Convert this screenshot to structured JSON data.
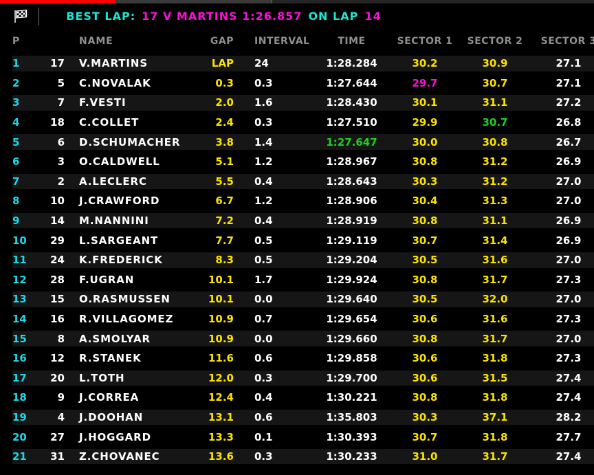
{
  "palette": {
    "red": "#ff0000",
    "seg_gray": "#3a3a3a",
    "seg_dark": "#252525",
    "banner_cyan": "#14e8d4",
    "magenta": "#fb10d8",
    "yellow": "#fbe300",
    "green": "#1fd11f",
    "cyan": "#1bd7e8",
    "white": "#ffffff",
    "header_gray": "#8f8f8f",
    "row_stripe": "#161616",
    "background": "#000000"
  },
  "top_bar": {
    "segments": [
      {
        "name": "page-indicator-active",
        "color": "#ff0000"
      },
      {
        "name": "page-indicator",
        "color": "#3a3a3a"
      },
      {
        "name": "page-indicator",
        "color": "#252525"
      }
    ]
  },
  "banner": {
    "flag_icon": "checkered-flag-icon",
    "best_lap_label": "BEST LAP:",
    "best_lap_value": "17 V MARTINS 1:26.857",
    "on_lap_label": "ON LAP",
    "lap_number": "14"
  },
  "table": {
    "columns": [
      {
        "key": "pos",
        "label": "P"
      },
      {
        "key": "car",
        "label": ""
      },
      {
        "key": "name",
        "label": "NAME"
      },
      {
        "key": "gap",
        "label": "GAP"
      },
      {
        "key": "interval",
        "label": "INTERVAL"
      },
      {
        "key": "time",
        "label": "TIME"
      },
      {
        "key": "s1",
        "label": "SECTOR 1"
      },
      {
        "key": "s2",
        "label": "SECTOR 2"
      },
      {
        "key": "s3",
        "label": "SECTOR 3"
      }
    ],
    "default_colors": {
      "pos": "cyan",
      "car": "white",
      "name": "white",
      "gap": "yellow",
      "interval": "white",
      "time": "white",
      "s1": "yellow",
      "s2": "yellow",
      "s3": "white"
    },
    "rows": [
      {
        "pos": "1",
        "car": "17",
        "name": "V.MARTINS",
        "gap": "LAP",
        "interval": "24",
        "time": "1:28.284",
        "s1": "30.2",
        "s2": "30.9",
        "s3": "27.1"
      },
      {
        "pos": "2",
        "car": "5",
        "name": "C.NOVALAK",
        "gap": "0.3",
        "interval": "0.3",
        "time": "1:27.644",
        "s1": "29.7",
        "s2": "30.7",
        "s3": "27.1",
        "overrides": {
          "s1": "magenta"
        }
      },
      {
        "pos": "3",
        "car": "7",
        "name": "F.VESTI",
        "gap": "2.0",
        "interval": "1.6",
        "time": "1:28.430",
        "s1": "30.1",
        "s2": "31.1",
        "s3": "27.2"
      },
      {
        "pos": "4",
        "car": "18",
        "name": "C.COLLET",
        "gap": "2.4",
        "interval": "0.3",
        "time": "1:27.510",
        "s1": "29.9",
        "s2": "30.7",
        "s3": "26.8",
        "overrides": {
          "s2": "green"
        }
      },
      {
        "pos": "5",
        "car": "6",
        "name": "D.SCHUMACHER",
        "gap": "3.8",
        "interval": "1.4",
        "time": "1:27.647",
        "s1": "30.0",
        "s2": "30.8",
        "s3": "26.7",
        "overrides": {
          "time": "green"
        }
      },
      {
        "pos": "6",
        "car": "3",
        "name": "O.CALDWELL",
        "gap": "5.1",
        "interval": "1.2",
        "time": "1:28.967",
        "s1": "30.8",
        "s2": "31.2",
        "s3": "26.9"
      },
      {
        "pos": "7",
        "car": "2",
        "name": "A.LECLERC",
        "gap": "5.5",
        "interval": "0.4",
        "time": "1:28.643",
        "s1": "30.3",
        "s2": "31.2",
        "s3": "27.0"
      },
      {
        "pos": "8",
        "car": "10",
        "name": "J.CRAWFORD",
        "gap": "6.7",
        "interval": "1.2",
        "time": "1:28.906",
        "s1": "30.4",
        "s2": "31.3",
        "s3": "27.0"
      },
      {
        "pos": "9",
        "car": "14",
        "name": "M.NANNINI",
        "gap": "7.2",
        "interval": "0.4",
        "time": "1:28.919",
        "s1": "30.8",
        "s2": "31.1",
        "s3": "26.9"
      },
      {
        "pos": "10",
        "car": "29",
        "name": "L.SARGEANT",
        "gap": "7.7",
        "interval": "0.5",
        "time": "1:29.119",
        "s1": "30.7",
        "s2": "31.4",
        "s3": "26.9"
      },
      {
        "pos": "11",
        "car": "24",
        "name": "K.FREDERICK",
        "gap": "8.3",
        "interval": "0.5",
        "time": "1:29.204",
        "s1": "30.5",
        "s2": "31.6",
        "s3": "27.0"
      },
      {
        "pos": "12",
        "car": "28",
        "name": "F.UGRAN",
        "gap": "10.1",
        "interval": "1.7",
        "time": "1:29.924",
        "s1": "30.8",
        "s2": "31.7",
        "s3": "27.3"
      },
      {
        "pos": "13",
        "car": "15",
        "name": "O.RASMUSSEN",
        "gap": "10.1",
        "interval": "0.0",
        "time": "1:29.640",
        "s1": "30.5",
        "s2": "32.0",
        "s3": "27.0"
      },
      {
        "pos": "14",
        "car": "16",
        "name": "R.VILLAGOMEZ",
        "gap": "10.9",
        "interval": "0.7",
        "time": "1:29.654",
        "s1": "30.6",
        "s2": "31.6",
        "s3": "27.3"
      },
      {
        "pos": "15",
        "car": "8",
        "name": "A.SMOLYAR",
        "gap": "10.9",
        "interval": "0.0",
        "time": "1:29.660",
        "s1": "30.8",
        "s2": "31.7",
        "s3": "27.0"
      },
      {
        "pos": "16",
        "car": "12",
        "name": "R.STANEK",
        "gap": "11.6",
        "interval": "0.6",
        "time": "1:29.858",
        "s1": "30.6",
        "s2": "31.8",
        "s3": "27.3"
      },
      {
        "pos": "17",
        "car": "20",
        "name": "L.TOTH",
        "gap": "12.0",
        "interval": "0.3",
        "time": "1:29.700",
        "s1": "30.6",
        "s2": "31.5",
        "s3": "27.4"
      },
      {
        "pos": "18",
        "car": "9",
        "name": "J.CORREA",
        "gap": "12.4",
        "interval": "0.4",
        "time": "1:30.221",
        "s1": "30.8",
        "s2": "31.8",
        "s3": "27.4"
      },
      {
        "pos": "19",
        "car": "4",
        "name": "J.DOOHAN",
        "gap": "13.1",
        "interval": "0.6",
        "time": "1:35.803",
        "s1": "30.3",
        "s2": "37.1",
        "s3": "28.2"
      },
      {
        "pos": "20",
        "car": "27",
        "name": "J.HOGGARD",
        "gap": "13.3",
        "interval": "0.1",
        "time": "1:30.393",
        "s1": "30.7",
        "s2": "31.8",
        "s3": "27.7"
      },
      {
        "pos": "21",
        "car": "31",
        "name": "Z.CHOVANEC",
        "gap": "13.6",
        "interval": "0.3",
        "time": "1:30.233",
        "s1": "31.0",
        "s2": "31.7",
        "s3": "27.4"
      }
    ]
  }
}
